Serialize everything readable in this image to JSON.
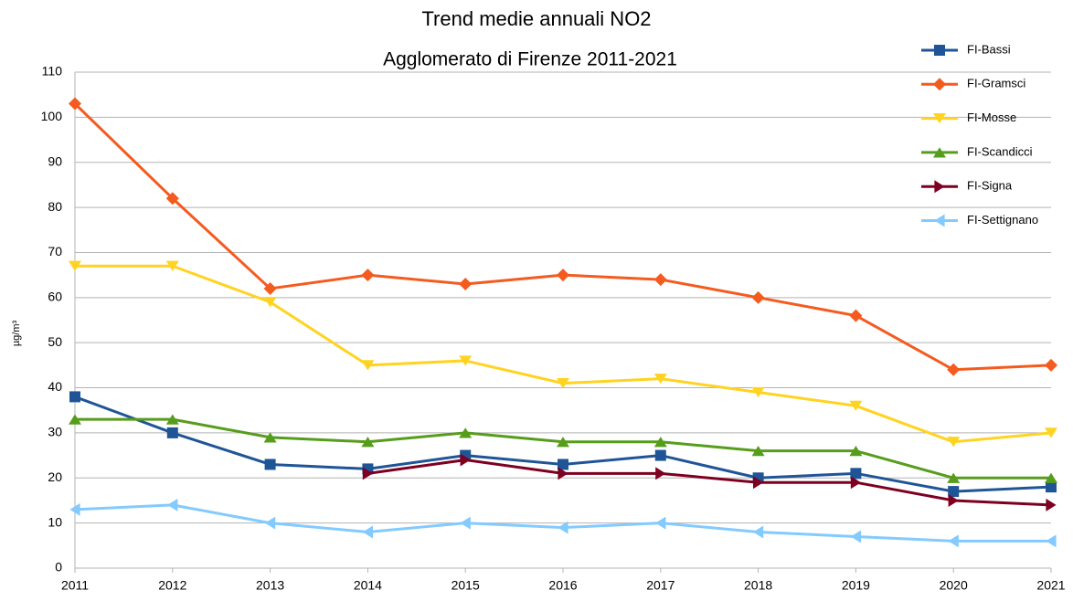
{
  "chart_data": {
    "type": "line",
    "title": "Trend medie annuali NO2",
    "subtitle": "Agglomerato di Firenze 2011-2021",
    "y_label": "µg/m³",
    "x": [
      2011,
      2012,
      2013,
      2014,
      2015,
      2016,
      2017,
      2018,
      2019,
      2020,
      2021
    ],
    "xlim": [
      2011,
      2021
    ],
    "xticks": [
      2011,
      2012,
      2013,
      2014,
      2015,
      2016,
      2017,
      2018,
      2019,
      2020,
      2021
    ],
    "ylim": [
      0,
      110
    ],
    "yticks": [
      0,
      10,
      20,
      30,
      40,
      50,
      60,
      70,
      80,
      90,
      100,
      110
    ],
    "grid": true,
    "legend": "right",
    "series": [
      {
        "name": "FI-Bassi",
        "color": "#1f5597",
        "marker": "square",
        "values": [
          38,
          30,
          23,
          22,
          25,
          23,
          25,
          20,
          21,
          17,
          18
        ]
      },
      {
        "name": "FI-Gramsci",
        "color": "#f55a1e",
        "marker": "diamond",
        "values": [
          103,
          82,
          62,
          65,
          63,
          65,
          64,
          60,
          56,
          44,
          45
        ]
      },
      {
        "name": "FI-Mosse",
        "color": "#ffd320",
        "marker": "triangle-down",
        "values": [
          67,
          67,
          59,
          45,
          46,
          41,
          42,
          39,
          36,
          28,
          30
        ]
      },
      {
        "name": "FI-Scandicci",
        "color": "#579d1c",
        "marker": "triangle-up",
        "values": [
          33,
          33,
          29,
          28,
          30,
          28,
          28,
          26,
          26,
          20,
          20
        ]
      },
      {
        "name": "FI-Signa",
        "color": "#7e0021",
        "marker": "triangle-right",
        "values": [
          null,
          null,
          null,
          21,
          24,
          21,
          21,
          19,
          19,
          15,
          14
        ]
      },
      {
        "name": "FI-Settignano",
        "color": "#83caff",
        "marker": "triangle-left",
        "values": [
          13,
          14,
          10,
          8,
          10,
          9,
          10,
          8,
          7,
          6,
          6
        ]
      }
    ]
  }
}
